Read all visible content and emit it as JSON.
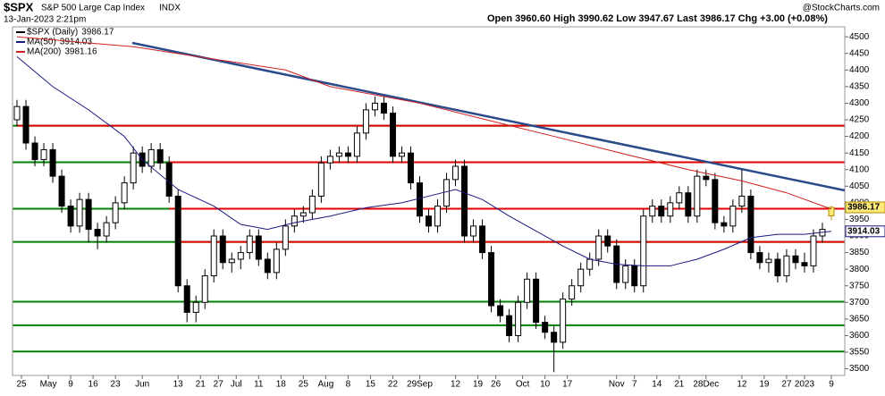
{
  "header": {
    "symbol": "$SPX",
    "name": "S&P 500 Large Cap Index",
    "exchange": "INDX",
    "date": "13-Jan-2023 2:21pm",
    "quote": "Open 3960.60  High 3990.62  Low 3947.67  Last 3986.17  Chg +3.00 (+0.08%)",
    "credit": "@StockCharts.com"
  },
  "chart_data": {
    "type": "candlestick",
    "x": [
      0,
      2,
      4,
      6,
      8,
      10,
      12,
      14,
      16,
      18,
      20,
      22,
      24,
      26,
      28,
      30,
      32,
      34,
      36,
      38,
      40,
      42,
      44,
      46,
      48,
      50,
      52,
      54,
      56,
      58,
      60,
      62,
      64,
      66,
      68,
      70,
      72,
      74,
      76,
      78,
      80,
      82,
      84,
      86,
      88,
      90,
      92,
      94,
      96,
      98,
      100,
      102,
      104,
      106,
      108,
      110,
      112,
      114,
      116,
      118,
      120,
      122,
      124,
      126,
      128,
      130,
      132,
      134,
      136,
      138,
      140,
      142,
      144,
      146,
      148,
      150,
      152,
      154,
      156,
      158,
      160,
      162,
      164,
      166,
      168,
      170,
      172,
      174,
      176,
      178,
      180,
      182
    ],
    "series": [
      {
        "name": "$SPX (Daily)",
        "color": "#000000",
        "values": [
          [
            4250,
            4310,
            4230,
            4290
          ],
          [
            4290,
            4310,
            4160,
            4180
          ],
          [
            4180,
            4200,
            4110,
            4130
          ],
          [
            4130,
            4180,
            4110,
            4160
          ],
          [
            4160,
            4180,
            4060,
            4080
          ],
          [
            4080,
            4100,
            3970,
            3990
          ],
          [
            3990,
            4010,
            3910,
            3930
          ],
          [
            3930,
            4030,
            3910,
            4010
          ],
          [
            4010,
            4030,
            3880,
            3920
          ],
          [
            3920,
            3940,
            3860,
            3900
          ],
          [
            3900,
            3960,
            3880,
            3940
          ],
          [
            3940,
            4020,
            3920,
            4000
          ],
          [
            4000,
            4080,
            3980,
            4060
          ],
          [
            4060,
            4170,
            4040,
            4150
          ],
          [
            4150,
            4170,
            4090,
            4110
          ],
          [
            4110,
            4180,
            4090,
            4160
          ],
          [
            4160,
            4180,
            4100,
            4120
          ],
          [
            4120,
            4140,
            4000,
            4020
          ],
          [
            4020,
            4040,
            3730,
            3750
          ],
          [
            3750,
            3770,
            3640,
            3670
          ],
          [
            3670,
            3720,
            3640,
            3700
          ],
          [
            3700,
            3800,
            3680,
            3780
          ],
          [
            3780,
            3920,
            3760,
            3900
          ],
          [
            3900,
            3920,
            3800,
            3820
          ],
          [
            3820,
            3850,
            3790,
            3830
          ],
          [
            3830,
            3870,
            3800,
            3850
          ],
          [
            3850,
            3920,
            3830,
            3900
          ],
          [
            3900,
            3920,
            3810,
            3830
          ],
          [
            3830,
            3850,
            3770,
            3790
          ],
          [
            3790,
            3880,
            3770,
            3860
          ],
          [
            3860,
            3950,
            3840,
            3930
          ],
          [
            3930,
            3980,
            3910,
            3960
          ],
          [
            3960,
            3990,
            3940,
            3970
          ],
          [
            3970,
            4040,
            3950,
            4020
          ],
          [
            4020,
            4140,
            4000,
            4120
          ],
          [
            4120,
            4160,
            4100,
            4140
          ],
          [
            4140,
            4170,
            4120,
            4150
          ],
          [
            4150,
            4170,
            4120,
            4140
          ],
          [
            4140,
            4230,
            4120,
            4210
          ],
          [
            4210,
            4300,
            4190,
            4280
          ],
          [
            4280,
            4320,
            4260,
            4300
          ],
          [
            4300,
            4320,
            4250,
            4270
          ],
          [
            4270,
            4290,
            4120,
            4140
          ],
          [
            4140,
            4170,
            4120,
            4150
          ],
          [
            4150,
            4170,
            4040,
            4060
          ],
          [
            4060,
            4080,
            3940,
            3960
          ],
          [
            3960,
            3980,
            3910,
            3930
          ],
          [
            3930,
            4010,
            3910,
            3990
          ],
          [
            3990,
            4090,
            3970,
            4070
          ],
          [
            4070,
            4130,
            4050,
            4110
          ],
          [
            4110,
            4130,
            3880,
            3900
          ],
          [
            3900,
            3950,
            3880,
            3930
          ],
          [
            3930,
            3950,
            3830,
            3850
          ],
          [
            3850,
            3870,
            3670,
            3690
          ],
          [
            3690,
            3710,
            3640,
            3660
          ],
          [
            3660,
            3680,
            3580,
            3600
          ],
          [
            3600,
            3720,
            3580,
            3700
          ],
          [
            3700,
            3790,
            3680,
            3770
          ],
          [
            3770,
            3790,
            3620,
            3640
          ],
          [
            3640,
            3660,
            3590,
            3610
          ],
          [
            3610,
            3630,
            3490,
            3580
          ],
          [
            3580,
            3730,
            3560,
            3710
          ],
          [
            3710,
            3770,
            3690,
            3750
          ],
          [
            3750,
            3820,
            3730,
            3800
          ],
          [
            3800,
            3850,
            3780,
            3830
          ],
          [
            3830,
            3920,
            3810,
            3900
          ],
          [
            3900,
            3920,
            3850,
            3870
          ],
          [
            3870,
            3890,
            3740,
            3760
          ],
          [
            3760,
            3830,
            3740,
            3810
          ],
          [
            3810,
            3830,
            3730,
            3750
          ],
          [
            3750,
            3980,
            3730,
            3960
          ],
          [
            3960,
            4010,
            3940,
            3990
          ],
          [
            3990,
            4010,
            3940,
            3960
          ],
          [
            3960,
            4020,
            3940,
            4000
          ],
          [
            4000,
            4050,
            3980,
            4030
          ],
          [
            4030,
            4050,
            3940,
            3960
          ],
          [
            3960,
            4100,
            3940,
            4080
          ],
          [
            4080,
            4100,
            4050,
            4070
          ],
          [
            4070,
            4090,
            3920,
            3940
          ],
          [
            3940,
            3960,
            3910,
            3930
          ],
          [
            3930,
            4010,
            3910,
            3990
          ],
          [
            3990,
            4100,
            3970,
            4020
          ],
          [
            4020,
            4040,
            3830,
            3850
          ],
          [
            3850,
            3870,
            3800,
            3820
          ],
          [
            3820,
            3850,
            3790,
            3830
          ],
          [
            3830,
            3850,
            3760,
            3780
          ],
          [
            3780,
            3860,
            3760,
            3840
          ],
          [
            3840,
            3860,
            3800,
            3820
          ],
          [
            3820,
            3850,
            3790,
            3810
          ],
          [
            3810,
            3920,
            3790,
            3900
          ],
          [
            3900,
            3940,
            3880,
            3920
          ],
          [
            3960.6,
            3990.62,
            3947.67,
            3986.17
          ]
        ]
      },
      {
        "name": "MA(50)",
        "color": "#1a1a80",
        "x": [
          0,
          8,
          16,
          24,
          28,
          36,
          44,
          50,
          56,
          62,
          70,
          78,
          86,
          92,
          98,
          104,
          110,
          116,
          122,
          128,
          134,
          140,
          146,
          152,
          158,
          164,
          170,
          176,
          182
        ],
        "values": [
          4440,
          4350,
          4280,
          4200,
          4130,
          4040,
          3990,
          3935,
          3920,
          3940,
          3960,
          3985,
          4000,
          4020,
          4040,
          4010,
          3960,
          3915,
          3870,
          3830,
          3815,
          3810,
          3810,
          3830,
          3860,
          3895,
          3905,
          3905,
          3914.03
        ]
      },
      {
        "name": "MA(200)",
        "color": "#cc2020",
        "x": [
          0,
          26,
          60,
          70,
          90,
          104,
          120,
          136,
          150,
          162,
          172,
          182
        ],
        "values": [
          4500,
          4470,
          4400,
          4350,
          4300,
          4253,
          4200,
          4146,
          4100,
          4066,
          4030,
          3981.16
        ]
      }
    ],
    "hlines": [
      {
        "value": 4232,
        "color": "#008000"
      },
      {
        "value": 4122,
        "color": "#008000"
      },
      {
        "value": 3982,
        "color": "#008000"
      },
      {
        "value": 3882,
        "color": "#008000"
      },
      {
        "value": 3702,
        "color": "#008000"
      },
      {
        "value": 3631,
        "color": "#008000"
      },
      {
        "value": 3552,
        "color": "#008000"
      },
      {
        "value": 4232,
        "color": "#e00000",
        "from": 0
      },
      {
        "value": 4122,
        "color": "#e00000",
        "from": 34
      },
      {
        "value": 3982,
        "color": "#e00000",
        "from": 34
      },
      {
        "value": 3882,
        "color": "#e00000",
        "from": 36
      }
    ],
    "xlim": [
      -1,
      185
    ],
    "ylim": [
      3480,
      4530
    ],
    "yticks": [
      3500,
      3550,
      3600,
      3650,
      3700,
      3750,
      3800,
      3850,
      3900,
      3950,
      4000,
      4050,
      4100,
      4150,
      4200,
      4250,
      4300,
      4350,
      4400,
      4450,
      4500
    ],
    "xticks": [
      {
        "value": 1,
        "label": "25"
      },
      {
        "value": 7,
        "label": "May"
      },
      {
        "value": 12,
        "label": "9"
      },
      {
        "value": 17,
        "label": "16"
      },
      {
        "value": 22,
        "label": "23"
      },
      {
        "value": 28,
        "label": "Jun"
      },
      {
        "value": 36,
        "label": "13"
      },
      {
        "value": 41,
        "label": "21"
      },
      {
        "value": 45,
        "label": "27"
      },
      {
        "value": 49,
        "label": "Jul"
      },
      {
        "value": 54,
        "label": "11"
      },
      {
        "value": 59,
        "label": "18"
      },
      {
        "value": 64,
        "label": "25"
      },
      {
        "value": 69,
        "label": "Aug"
      },
      {
        "value": 74,
        "label": "8"
      },
      {
        "value": 79,
        "label": "15"
      },
      {
        "value": 84,
        "label": "22"
      },
      {
        "value": 90,
        "label": "29Sep"
      },
      {
        "value": 98,
        "label": "12"
      },
      {
        "value": 103,
        "label": "19"
      },
      {
        "value": 107,
        "label": "26"
      },
      {
        "value": 113,
        "label": "Oct"
      },
      {
        "value": 118,
        "label": "10"
      },
      {
        "value": 123,
        "label": "17"
      },
      {
        "value": 134,
        "label": "Nov"
      },
      {
        "value": 138,
        "label": "7"
      },
      {
        "value": 143,
        "label": "14"
      },
      {
        "value": 148,
        "label": "21"
      },
      {
        "value": 154,
        "label": "28Dec"
      },
      {
        "value": 162,
        "label": "12"
      },
      {
        "value": 167,
        "label": "19"
      },
      {
        "value": 172,
        "label": "27"
      },
      {
        "value": 176,
        "label": "2023"
      },
      {
        "value": 182,
        "label": "9"
      }
    ],
    "grid": false
  }
}
